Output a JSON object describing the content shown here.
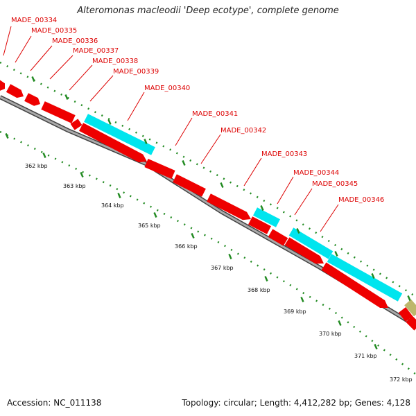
{
  "header": {
    "title": "Alteromonas macleodii 'Deep ecotype', complete genome"
  },
  "footer": {
    "accession": "Accession: NC_011138",
    "info": "Topology: circular; Length: 4,412,282 bp; Genes: 4,128"
  },
  "colors": {
    "cds": "#ee0000",
    "rna": "#00e5ee",
    "other": "#bdb76b",
    "label": "#dd0000",
    "tick": "#228b22",
    "backbone": "#888888"
  },
  "genes": [
    {
      "label": "MADE_00334",
      "color": "cds"
    },
    {
      "label": "MADE_00335",
      "color": "cds"
    },
    {
      "label": "MADE_00336",
      "color": "cds"
    },
    {
      "label": "MADE_00337",
      "color": "cds"
    },
    {
      "label": "MADE_00338",
      "color": "cds"
    },
    {
      "label": "MADE_00339",
      "color": "cds"
    },
    {
      "label": "MADE_00340",
      "color": "rna"
    },
    {
      "label": "MADE_00341",
      "color": "cds"
    },
    {
      "label": "MADE_00342",
      "color": "cds"
    },
    {
      "label": "MADE_00343",
      "color": "cds"
    },
    {
      "label": "MADE_00344",
      "color": "rna"
    },
    {
      "label": "MADE_00345",
      "color": "cds"
    },
    {
      "label": "MADE_00346",
      "color": "rna"
    }
  ],
  "ticks": [
    {
      "label": "362 kbp"
    },
    {
      "label": "363 kbp"
    },
    {
      "label": "364 kbp"
    },
    {
      "label": "365 kbp"
    },
    {
      "label": "366 kbp"
    },
    {
      "label": "367 kbp"
    },
    {
      "label": "368 kbp"
    },
    {
      "label": "369 kbp"
    },
    {
      "label": "370 kbp"
    },
    {
      "label": "371 kbp"
    },
    {
      "label": "372 kbp"
    }
  ]
}
